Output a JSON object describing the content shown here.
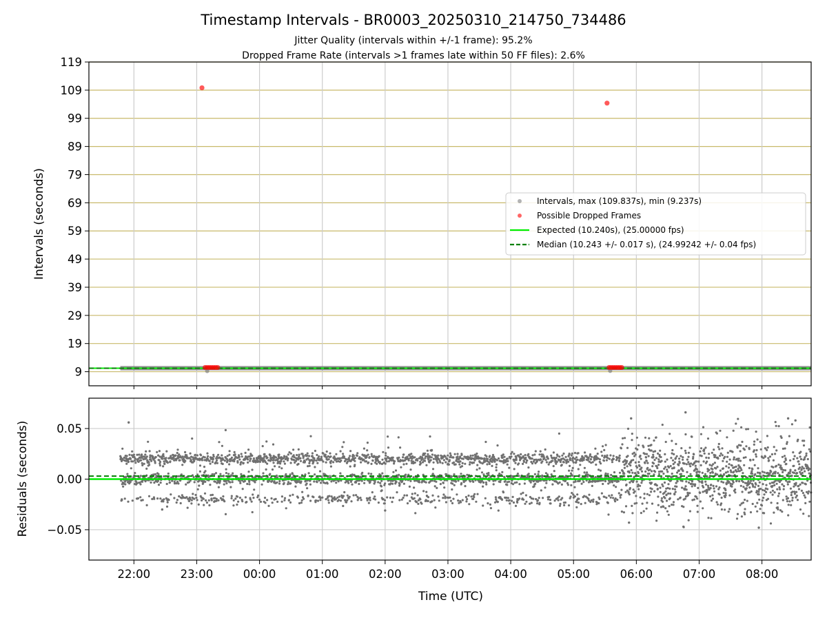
{
  "chart_data": [
    {
      "type": "scatter",
      "title": "Timestamp Intervals - BR0003_20250310_214750_734486",
      "subtitle_lines": [
        "Jitter Quality (intervals within +/-1 frame): 95.2%",
        "Dropped Frame Rate (intervals >1 frames late within 50 FF files): 2.6%"
      ],
      "xlabel": "",
      "ylabel": "Intervals (seconds)",
      "x_range": [
        "2025-03-10 21:17",
        "2025-03-11 08:47"
      ],
      "ylim": [
        4,
        119
      ],
      "yticks": [
        9,
        19,
        29,
        39,
        49,
        59,
        69,
        79,
        89,
        99,
        109,
        119
      ],
      "grid": true,
      "legend_position": "center-right",
      "legend": [
        "Intervals, max (109.837s), min (9.237s)",
        "Possible Dropped Frames",
        "Expected (10.240s), (25.00000 fps)",
        "Median (10.243 +/- 0.017 s), (24.99242 +/- 0.04 fps)"
      ],
      "expected_interval": 10.24,
      "median_interval": 10.243,
      "data_start": "2025-03-10 21:47",
      "data_end": "2025-03-11 08:47",
      "interval_band": [
        10.2,
        10.28
      ],
      "min_points": [
        {
          "x": "2025-03-10 23:10",
          "y": 9.237
        },
        {
          "x": "2025-03-11 05:35",
          "y": 9.3
        }
      ],
      "dropped_frames": [
        {
          "x": "2025-03-10 23:05",
          "y": 109.837
        },
        {
          "x": "2025-03-11 05:32",
          "y": 104.4
        },
        {
          "x": "2025-03-10 23:08",
          "y": 10.5
        },
        {
          "x": "2025-03-10 23:10",
          "y": 10.5
        },
        {
          "x": "2025-03-10 23:12",
          "y": 10.5
        },
        {
          "x": "2025-03-10 23:14",
          "y": 10.5
        },
        {
          "x": "2025-03-10 23:16",
          "y": 10.5
        },
        {
          "x": "2025-03-10 23:18",
          "y": 10.5
        },
        {
          "x": "2025-03-10 23:20",
          "y": 10.5
        },
        {
          "x": "2025-03-11 05:34",
          "y": 10.5
        },
        {
          "x": "2025-03-11 05:36",
          "y": 10.5
        },
        {
          "x": "2025-03-11 05:38",
          "y": 10.5
        },
        {
          "x": "2025-03-11 05:40",
          "y": 10.5
        },
        {
          "x": "2025-03-11 05:42",
          "y": 10.5
        },
        {
          "x": "2025-03-11 05:44",
          "y": 10.5
        },
        {
          "x": "2025-03-11 05:46",
          "y": 10.5
        }
      ],
      "colors": {
        "intervals": "#808080",
        "dropped": "#ff0000",
        "expected": "#00ee00",
        "median": "#008000",
        "ygrid": "#c8b96a",
        "xgrid": "#cccccc"
      }
    },
    {
      "type": "scatter",
      "xlabel": "Time (UTC)",
      "ylabel": "Residuals (seconds)",
      "x_range": [
        "2025-03-10 21:17",
        "2025-03-11 08:47"
      ],
      "ylim": [
        -0.08,
        0.08
      ],
      "yticks": [
        -0.05,
        0.0,
        0.05
      ],
      "ytick_labels": [
        "−0.05",
        "0.00",
        "0.05"
      ],
      "xtick_labels": [
        "22:00",
        "23:00",
        "00:00",
        "01:00",
        "02:00",
        "03:00",
        "04:00",
        "05:00",
        "06:00",
        "07:00",
        "08:00"
      ],
      "grid": true,
      "expected_residual": 0.0,
      "median_residual": 0.003,
      "residual_clusters": [
        -0.02,
        0.0,
        0.02
      ],
      "residual_extremes": [
        {
          "x": "2025-03-10 21:55",
          "y": 0.056
        },
        {
          "x": "2025-03-11 05:55",
          "y": 0.06
        },
        {
          "x": "2025-03-11 06:47",
          "y": 0.066
        },
        {
          "x": "2025-03-11 08:25",
          "y": 0.06
        },
        {
          "x": "2025-03-11 08:32",
          "y": 0.058
        },
        {
          "x": "2025-03-11 06:45",
          "y": -0.047
        },
        {
          "x": "2025-03-11 07:57",
          "y": -0.048
        },
        {
          "x": "2025-03-11 05:53",
          "y": -0.043
        },
        {
          "x": "2025-03-11 02:00",
          "y": -0.031
        },
        {
          "x": "2025-03-10 22:27",
          "y": -0.03
        }
      ],
      "colors": {
        "residuals": "#707070",
        "expected": "#00ee00",
        "median": "#008000",
        "grid": "#cccccc"
      }
    }
  ]
}
